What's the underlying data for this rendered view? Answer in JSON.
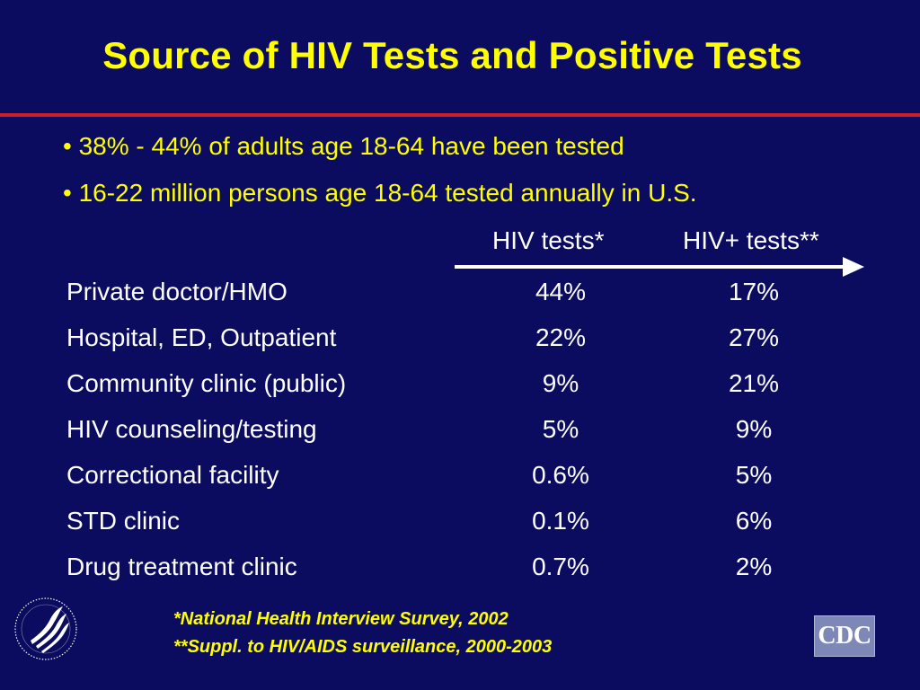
{
  "title": "Source of HIV Tests and Positive Tests",
  "bullets": [
    "• 38% - 44% of adults age 18-64 have been tested",
    "• 16-22 million persons age 18-64 tested annually in U.S."
  ],
  "table": {
    "headers": {
      "hiv_tests": "HIV tests*",
      "hiv_positive": "HIV+ tests**"
    },
    "rows": [
      {
        "source": "Private doctor/HMO",
        "hiv_tests": "44%",
        "hiv_positive": "17%"
      },
      {
        "source": "Hospital, ED, Outpatient",
        "hiv_tests": "22%",
        "hiv_positive": "27%"
      },
      {
        "source": "Community clinic (public)",
        "hiv_tests": "9%",
        "hiv_positive": "21%"
      },
      {
        "source": "HIV counseling/testing",
        "hiv_tests": "5%",
        "hiv_positive": "9%"
      },
      {
        "source": "Correctional facility",
        "hiv_tests": "0.6%",
        "hiv_positive": "5%"
      },
      {
        "source": "STD clinic",
        "hiv_tests": "0.1%",
        "hiv_positive": "6%"
      },
      {
        "source": "Drug treatment clinic",
        "hiv_tests": "0.7%",
        "hiv_positive": "2%"
      }
    ]
  },
  "footnotes": [
    "*National Health Interview Survey, 2002",
    "**Suppl. to HIV/AIDS surveillance, 2000-2003"
  ],
  "logos": {
    "hhs": "hhs-seal-icon",
    "cdc_text": "CDC"
  },
  "colors": {
    "background": "#0b0b60",
    "title": "#ffff00",
    "rule": "#cc1f2a",
    "body_text": "#ffffff"
  }
}
